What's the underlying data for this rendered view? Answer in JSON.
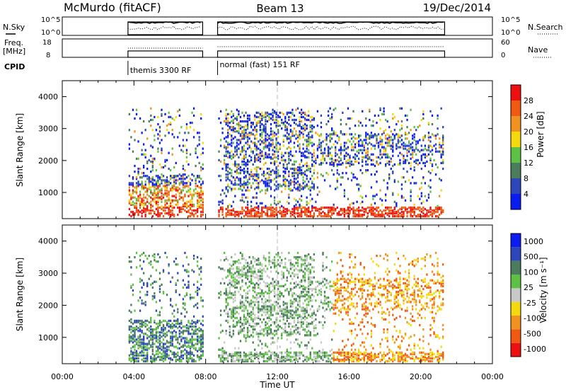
{
  "header": {
    "station": "McMurdo (fitACF)",
    "beam": "Beam 13",
    "date": "19/Dec/2014"
  },
  "strips": {
    "nsky_label": "N.Sky",
    "nsky_ticks": [
      "10^5",
      "10^0"
    ],
    "nsearch_label": "N.Search",
    "nsearch_ticks": [
      "10^5",
      "10^0"
    ],
    "freq_label": "Freq.",
    "freq_unit": "[MHz]",
    "freq_ticks": [
      "18",
      "8"
    ],
    "nave_label": "Nave",
    "nave_ticks": [
      "60",
      "0"
    ],
    "cpid_label": "CPID",
    "cpid_segments": [
      {
        "name": "themis 3300 RF",
        "start": "03:40",
        "end": "07:50"
      },
      {
        "name": "normal (fast) 151 RF",
        "start": "08:40",
        "end": "21:20"
      }
    ]
  },
  "colors": {
    "power": [
      "#0a1cf0",
      "#2d46b9",
      "#4a7d5c",
      "#5ec045",
      "#f5d90f",
      "#f09220",
      "#f05a10",
      "#ee1010"
    ],
    "velocity": [
      "#ee1010",
      "#f05a10",
      "#f09220",
      "#f5d90f",
      "#c8c8c8",
      "#5ec045",
      "#4a7d5c",
      "#2d46b9",
      "#0a1cf0"
    ]
  },
  "chart_data": [
    {
      "type": "heatmap",
      "panel": "power",
      "ylabel": "Slant Range [km]",
      "ylim": [
        180,
        4500
      ],
      "yticks": [
        "1000",
        "2000",
        "3000",
        "4000"
      ],
      "xlim": [
        "00:00",
        "24:00"
      ],
      "colorbar_label": "Power [dB]",
      "colorbar_ticks": [
        "4",
        "8",
        "12",
        "16",
        "20",
        "24",
        "28"
      ],
      "colorbar_range": [
        0,
        32
      ],
      "data_coverage": [
        [
          "03:40",
          "07:50"
        ],
        [
          "08:40",
          "21:20"
        ]
      ]
    },
    {
      "type": "heatmap",
      "panel": "velocity",
      "ylabel": "Slant Range [km]",
      "ylim": [
        180,
        4500
      ],
      "yticks": [
        "1000",
        "2000",
        "3000",
        "4000"
      ],
      "xlim": [
        "00:00",
        "24:00"
      ],
      "xlabel": "Time UT",
      "xticks": [
        "00:00",
        "04:00",
        "08:00",
        "12:00",
        "16:00",
        "20:00",
        "00:00"
      ],
      "colorbar_label": "Velocity [m s⁻¹]",
      "colorbar_ticks": [
        "1000",
        "500",
        "100",
        "25",
        "-25",
        "-100",
        "-500",
        "-1000"
      ],
      "data_coverage": [
        [
          "03:40",
          "07:50"
        ],
        [
          "08:40",
          "21:20"
        ]
      ]
    }
  ]
}
